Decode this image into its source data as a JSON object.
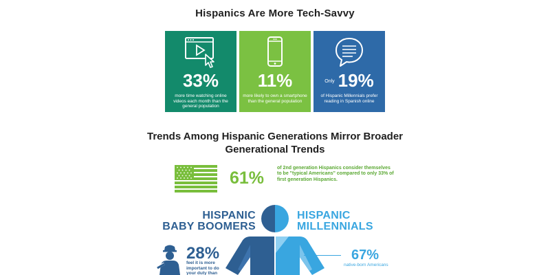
{
  "title": "Hispanics Are More Tech-Savvy",
  "cards": [
    {
      "icon": "video-play-icon",
      "stat": "33%",
      "desc": "more time watching online videos each month than the general population",
      "color": "#138a6b"
    },
    {
      "icon": "smartphone-icon",
      "stat": "11%",
      "desc": "more likely to own a smartphone than the general population",
      "color": "#7bc142"
    },
    {
      "icon": "chat-bubble-icon",
      "prefix": "Only",
      "stat": "19%",
      "desc": "of Hispanic Millennials prefer reading in Spanish online",
      "color": "#2e6aa8"
    }
  ],
  "section2_title": "Trends Among Hispanic Generations Mirror Broader Generational Trends",
  "flag_stat": {
    "value": "61%",
    "desc": "of 2nd generation Hispanics consider themselves to be \"typical Americans\" compared to only 33% of first generation Hispanics."
  },
  "generations": {
    "left_line1": "HISPANIC",
    "left_line2": "BABY BOOMERS",
    "right_line1": "HISPANIC",
    "right_line2": "MILLENNIALS"
  },
  "boomers_stat": {
    "value": "28%",
    "desc": "feel it is more important to do your duty than"
  },
  "millennials_stat": {
    "value": "67%",
    "desc": "native-born Americans"
  },
  "colors": {
    "green_dark": "#138a6b",
    "green_light": "#7bc142",
    "blue_dark": "#2e5f92",
    "blue_light": "#39a6e0"
  }
}
